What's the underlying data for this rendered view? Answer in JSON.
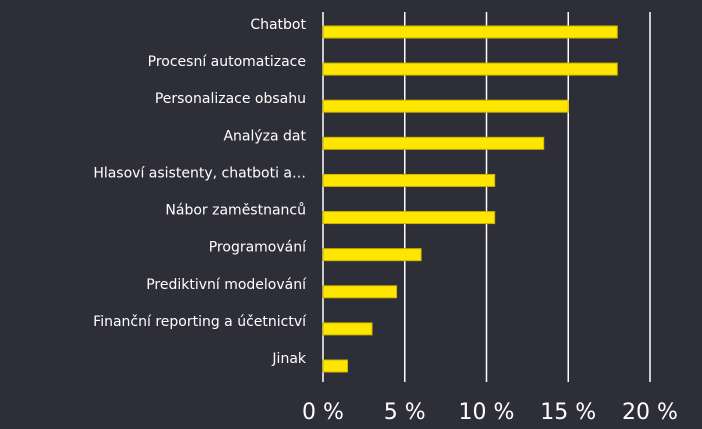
{
  "chart_data": {
    "type": "barh",
    "categories": [
      "Chatbot",
      "Procesní automatizace",
      "Personalizace obsahu",
      "Analýza dat",
      "Hlasoví asistenty, chatboti a…",
      "Nábor zaměstnanců",
      "Programování",
      "Prediktivní modelování",
      "Finanční reporting a účetnictví",
      "Jinak"
    ],
    "values": [
      18,
      18,
      15,
      13.5,
      10.5,
      10.5,
      6,
      4.5,
      3,
      1.5
    ],
    "color": "#ffe600",
    "xlim": [
      0,
      20
    ],
    "xticks": [
      {
        "value": 0,
        "label": "0 %"
      },
      {
        "value": 5,
        "label": "5 %"
      },
      {
        "value": 10,
        "label": "10 %"
      },
      {
        "value": 15,
        "label": "15 %"
      },
      {
        "value": 20,
        "label": "20 %"
      }
    ],
    "grid": true
  }
}
